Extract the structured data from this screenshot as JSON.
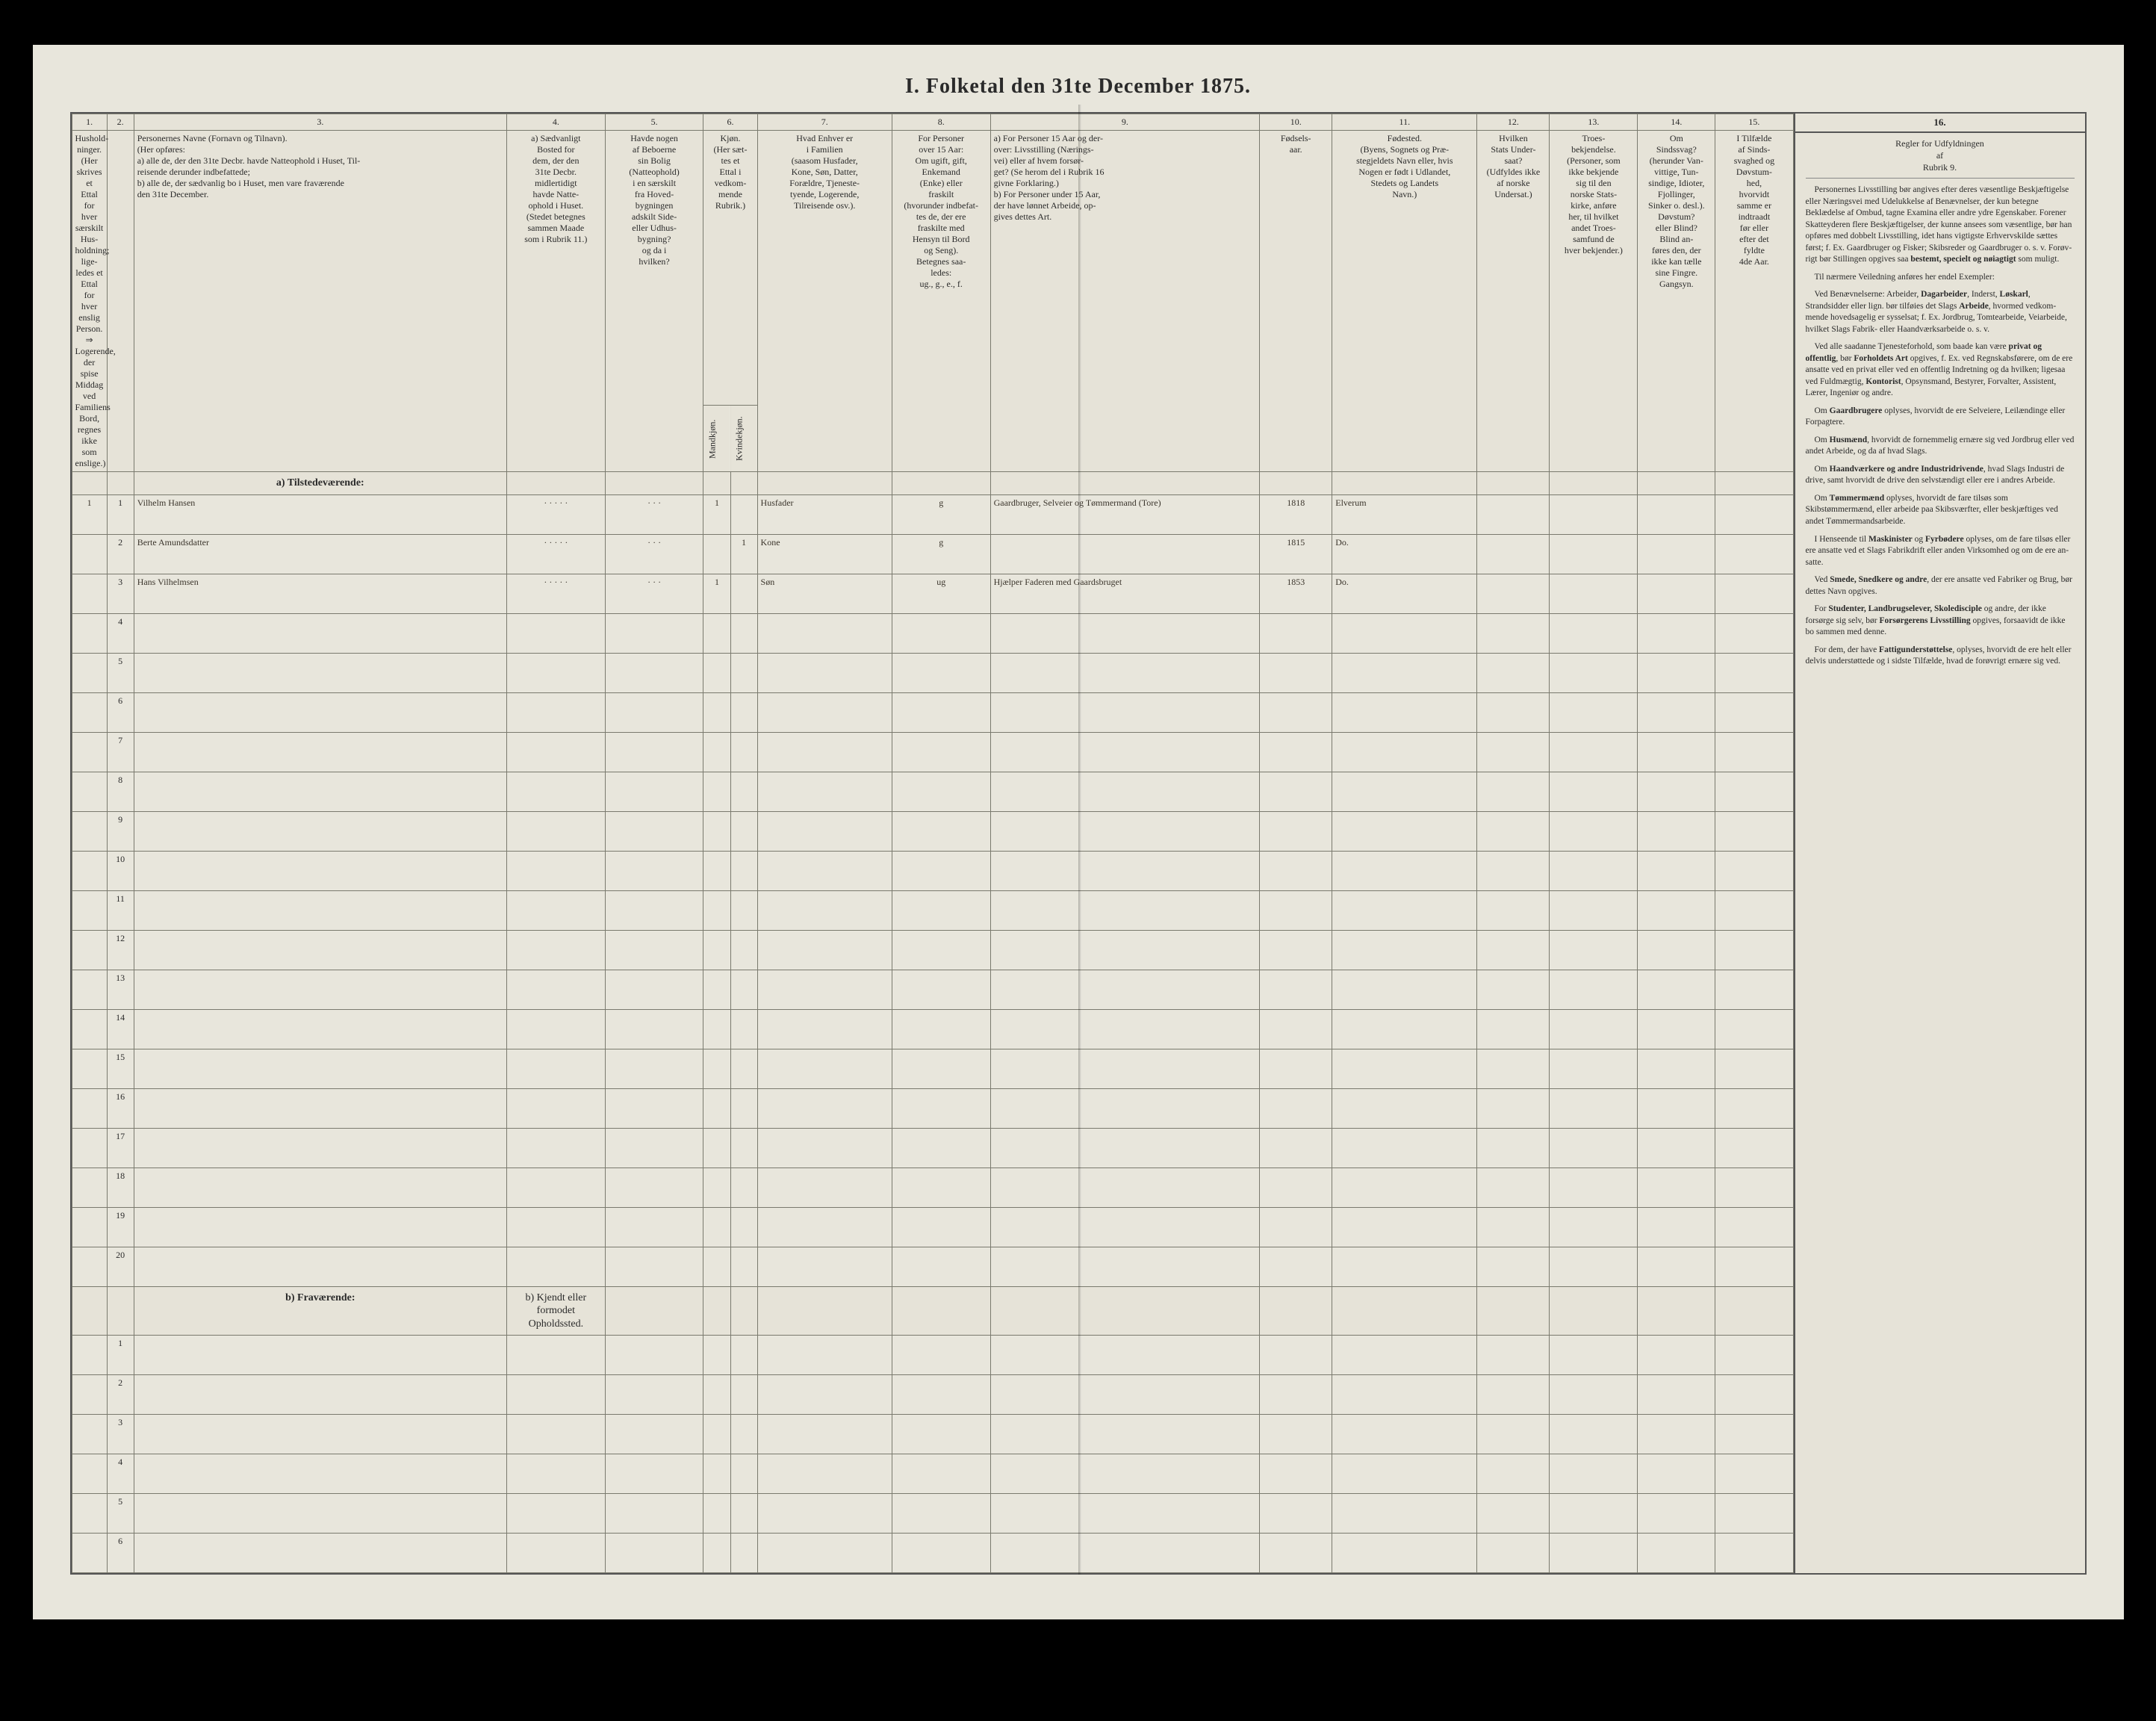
{
  "title": "I. Folketal den 31te December 1875.",
  "columns": {
    "nums": [
      "1.",
      "2.",
      "3.",
      "4.",
      "5.",
      "6.",
      "7.",
      "8.",
      "9.",
      "10.",
      "11.",
      "12.",
      "13.",
      "14.",
      "15.",
      "16."
    ],
    "h1": "Hushold-\nninger.\n(Her skrives et\nEttal for hver\nsærskilt Hus-\nholdning; lige-\nledes et Ettal for\nhver enslig\nPerson.\n⇒ Logerende,\nder spise Middag\nved Familiens\nBord, regnes ikke\nsom enslige.)",
    "h2": "",
    "h3": "Personernes Navne (Fornavn og Tilnavn).\n(Her opføres:\na) alle de, der den 31te Decbr. havde Natteophold i Huset, Til-\nreisende derunder indbefattede;\nb) alle de, der sædvanlig bo i Huset, men vare fraværende\nden 31te December.",
    "h4": "a) Sædvanligt\nBosted for\ndem, der den\n31te Decbr.\nmidlertidigt\nhavde Natte-\nophold i Huset.\n(Stedet betegnes\nsammen Maade\nsom i Rubrik 11.)",
    "h5": "Havde nogen\naf Beboerne\nsin Bolig\n(Natteophold)\ni en særskilt\nfra Hoved-\nbygningen\nadskilt Side-\neller Udhus-\nbygning?\nog da i\nhvilken?",
    "h6": "Kjøn.\n(Her sæt-\ntes et\nEttal i\nvedkom-\nmende\nRubrik.)",
    "h6a": "Mandkjøn.",
    "h6b": "Kvindekjøn.",
    "h7": "Hvad Enhver er\ni Familien\n(saasom Husfader,\nKone, Søn, Datter,\nForældre, Tjeneste-\ntyende, Logerende,\nTilreisende osv.).",
    "h8": "For Personer\nover 15 Aar:\nOm ugift, gift,\nEnkemand\n(Enke) eller\nfraskilt\n(hvorunder indbefat-\ntes de, der ere\nfraskilte med\nHensyn til Bord\nog Seng).\nBetegnes saa-\nledes:\nug., g., e., f.",
    "h9": "a) For Personer 15 Aar og der-\n    over: Livsstilling (Nærings-\n    vei) eller af hvem forsør-\n    get? (Se herom del i Rubrik 16\n    givne Forklaring.)\nb) For Personer under 15 Aar,\n    der have lønnet Arbeide, op-\n    gives dettes Art.",
    "h10": "Fødsels-\naar.",
    "h11": "Fødested.\n(Byens, Sognets og Præ-\nstegjeldets Navn eller, hvis\nNogen er født i Udlandet,\nStedets og Landets\nNavn.)",
    "h12": "Hvilken\nStats Under-\nsaat?\n(Udfyldes ikke\naf norske\nUndersat.)",
    "h13": "Troes-\nbekjendelse.\n(Personer, som\nikke bekjende\nsig til den\nnorske Stats-\nkirke, anføre\nher, til hvilket\nandet Troes-\nsamfund de\nhver bekjender.)",
    "h14": "Om\nSindssvag?\n(herunder Van-\nvittige, Tun-\nsindige, Idioter,\nFjollinger,\nSinker o. desl.).\nDøvstum?\neller Blind?\nBlind an-\nføres den, der\nikke kan tælle\nsine Fingre.\nGangsyn.",
    "h15": "I Tilfælde\naf Sinds-\nsvaghed og\nDøvstum-\nhed,\nhvorvidt\nsamme er\nindtraadt\nfør eller\nefter det\nfyldte\n4de Aar.",
    "h16": "Regler for Udfyldningen\naf\nRubrik 9."
  },
  "sections": {
    "present": "a) Tilstedeværende:",
    "absent": "b) Fraværende:",
    "absent4": "b) Kjendt eller\nformodet\nOpholdssted."
  },
  "rows": [
    {
      "n": "1",
      "hh": "1",
      "name": "Vilhelm Hansen",
      "m": "1",
      "k": "",
      "fam": "Husfader",
      "civ": "g",
      "occ": "Gaardbruger, Selveier og Tømmermand (Tore)",
      "yr": "1818",
      "place": "Elverum"
    },
    {
      "n": "2",
      "hh": "",
      "name": "Berte Amundsdatter",
      "m": "",
      "k": "1",
      "fam": "Kone",
      "civ": "g",
      "occ": "",
      "yr": "1815",
      "place": "Do."
    },
    {
      "n": "3",
      "hh": "",
      "name": "Hans Vilhelmsen",
      "m": "1",
      "k": "",
      "fam": "Søn",
      "civ": "ug",
      "occ": "Hjælper Faderen med Gaardsbruget",
      "yr": "1853",
      "place": "Do."
    }
  ],
  "emptyPresent": [
    4,
    5,
    6,
    7,
    8,
    9,
    10,
    11,
    12,
    13,
    14,
    15,
    16,
    17,
    18,
    19,
    20
  ],
  "emptyAbsent": [
    1,
    2,
    3,
    4,
    5,
    6
  ],
  "rules": [
    "Personernes Livsstilling bør angives efter deres væ­sentlige Beskjæftigelse eller Næringsvei med Udelukkelse af Benævnelser, der kun be­tegne Beklædelse af Ombud, tagne Examina eller andre ydre Egenskaber. Forener Skatteyderen flere Beskjæfti­gelser, der kunne ansees som væsentlige, bør han opføres med dobbelt Livsstilling, idet hans vigtigste Erhvervskilde sættes først; f. Ex. Gaardbru­ger og Fisker; Skibsreder og Gaardbruger o. s. v. Forøv­rigt bør Stillingen opgives saa <b>bestemt, specielt og nøiagtigt</b> som muligt.",
    "Til nærmere Veiledning an­føres her endel Exempler:",
    "Ved Benævnelserne: Arbei­der, <b>Dagarbeider</b>, Inderst, <b>Løskarl</b>, Strandsidder eller lign. bør tilføies det Slags <b>Arbeide</b>, hvormed vedkom­mende hovedsagelig er syssel­sat; f. Ex. Jordbrug, Tomte­arbeide, Veiarbeide, hvilket Slags Fabrik- eller Haand­værksarbeide o. s. v.",
    "Ved alle saadanne Tjene­steforhold, som baade kan være <b>privat og offentlig</b>, bør <b>Forholdets Art</b> opgives, f. Ex. ved Regnskabsførere, om de ere ansatte ved en privat eller ved en offentlig Indretning og da hvilken; ligesaa ved Fuld­mægtig, <b>Kontorist</b>, Opsyns­mand, Bestyrer, Forvalter, Assistent, Lærer, Ingeniør og andre.",
    "Om <b>Gaardbrugere</b> oplyses, hvorvidt de ere Selveiere, Lei­lændinge eller Forpagtere.",
    "Om <b>Husmænd</b>, hvorvidt de fornemmelig ernære sig ved Jordbrug eller ved andet Ar­beide, og da af hvad Slags.",
    "Om <b>Haandværkere og an­dre Industridrivende</b>, hvad Slags Industri de drive, samt hvorvidt de drive den selv­stændigt eller ere i andres Arbeide.",
    "Om <b>Tømmermænd</b> oplyses, hvorvidt de fare tilsøs som Skibstømmermænd, eller ar­beide paa Skibsværfter, eller beskjæftiges ved andet Tøm­mermandsarbeide.",
    "I Henseende til <b>Maskinister</b> og <b>Fyrbødere</b> oplyses, om de fare tilsøs eller ere ansatte ved et Slags Fabrikdrift eller anden Virksomhed og om de ere an­satte.",
    "Ved <b>Smede, Snedkere og andre</b>, der ere ansatte ved Fa­briker og Brug, bør dettes Navn opgives.",
    "For <b>Studenter, Landbrugs­elever, Skoledisciple</b> og an­dre, der ikke forsørge sig selv, bør <b>Forsørgerens Livs­stilling</b> opgives, forsaavidt de ikke bo sammen med denne.",
    "For dem, der have <b>Fattig­understøttelse</b>, oplyses, hvor­vidt de ere helt eller delvis understøttede og i sidste Til­fælde, hvad de forøvrigt er­nære sig ved."
  ]
}
